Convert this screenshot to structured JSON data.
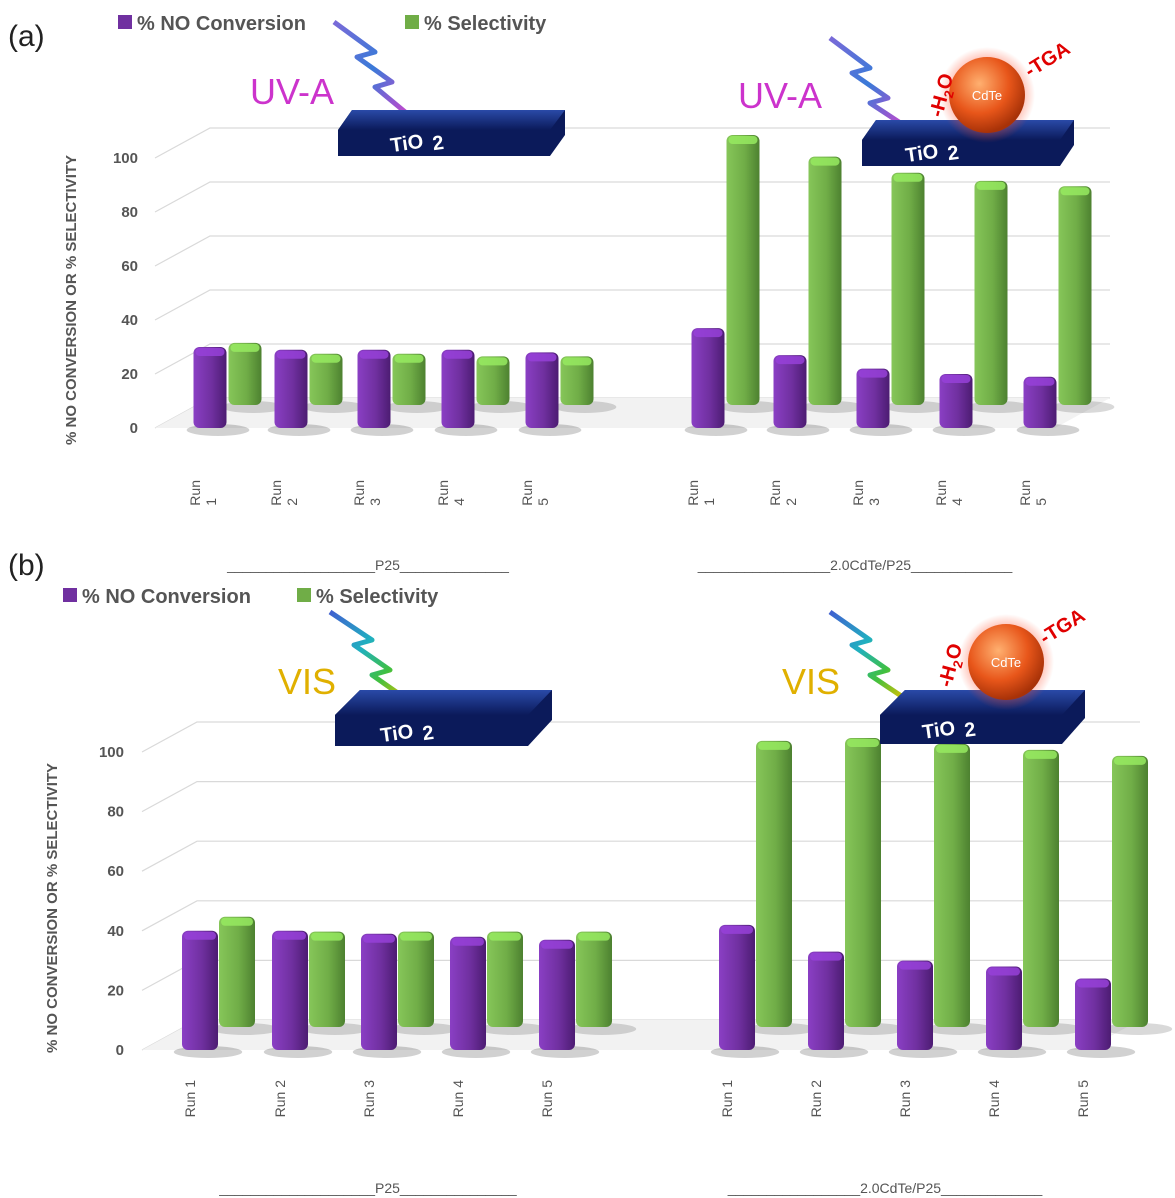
{
  "colors": {
    "conversion": "#7030a0",
    "selectivity": "#70ad47",
    "uv": "#cc33cc",
    "vis": "#e0b000"
  },
  "illustration": {
    "tio2_label": "TiO",
    "tio2_subscript": "2",
    "cdte_label": "CdTe",
    "tga_label": "-TGA",
    "h2o_label": "-H",
    "h2o_subscript": "2",
    "h2o_suffix": "O"
  },
  "chart_data": [
    {
      "type": "bar",
      "panel_label": "(a)",
      "light_label": "UV-A",
      "ylabel": "% NO CONVERSION OR % SELECTIVITY",
      "ylim": [
        0,
        100
      ],
      "yticks": [
        "0",
        "20",
        "40",
        "60",
        "80",
        "100"
      ],
      "legend": [
        "% NO Conversion",
        "% Selectivity"
      ],
      "groups": [
        {
          "name": "___________________P25______________",
          "categories": [
            "Run 1",
            "Run 2",
            "Run 3",
            "Run 4",
            "Run 5"
          ],
          "series": [
            {
              "name": "% NO Conversion",
              "values": [
                30,
                29,
                29,
                29,
                28
              ]
            },
            {
              "name": "% Selectivity",
              "values": [
                23,
                19,
                19,
                18,
                18
              ]
            }
          ]
        },
        {
          "name": "_________________2.0CdTe/P25_____________",
          "categories": [
            "Run 1",
            "Run 2",
            "Run 3",
            "Run 4",
            "Run 5"
          ],
          "series": [
            {
              "name": "% NO Conversion",
              "values": [
                37,
                27,
                22,
                20,
                19
              ]
            },
            {
              "name": "% Selectivity",
              "values": [
                100,
                92,
                86,
                83,
                81
              ]
            }
          ]
        }
      ]
    },
    {
      "type": "bar",
      "panel_label": "(b)",
      "light_label": "VIS",
      "ylabel": "% NO CONVERSION OR % SELECTIVITY",
      "ylim": [
        0,
        100
      ],
      "yticks": [
        "0",
        "20",
        "40",
        "60",
        "80",
        "100"
      ],
      "legend": [
        "% NO Conversion",
        "% Selectivity"
      ],
      "groups": [
        {
          "name": "____________________P25_______________",
          "categories": [
            "Run 1",
            "Run 2",
            "Run 3",
            "Run 4",
            "Run 5"
          ],
          "series": [
            {
              "name": "% NO Conversion",
              "values": [
                40,
                40,
                39,
                38,
                37
              ]
            },
            {
              "name": "% Selectivity",
              "values": [
                37,
                32,
                32,
                32,
                32
              ]
            }
          ]
        },
        {
          "name": "_________________2.0CdTe/P25_____________",
          "categories": [
            "Run 1",
            "Run 2",
            "Run 3",
            "Run 4",
            "Run 5"
          ],
          "series": [
            {
              "name": "% NO Conversion",
              "values": [
                42,
                33,
                30,
                28,
                24
              ]
            },
            {
              "name": "% Selectivity",
              "values": [
                96,
                97,
                95,
                93,
                91
              ]
            }
          ]
        }
      ]
    }
  ]
}
